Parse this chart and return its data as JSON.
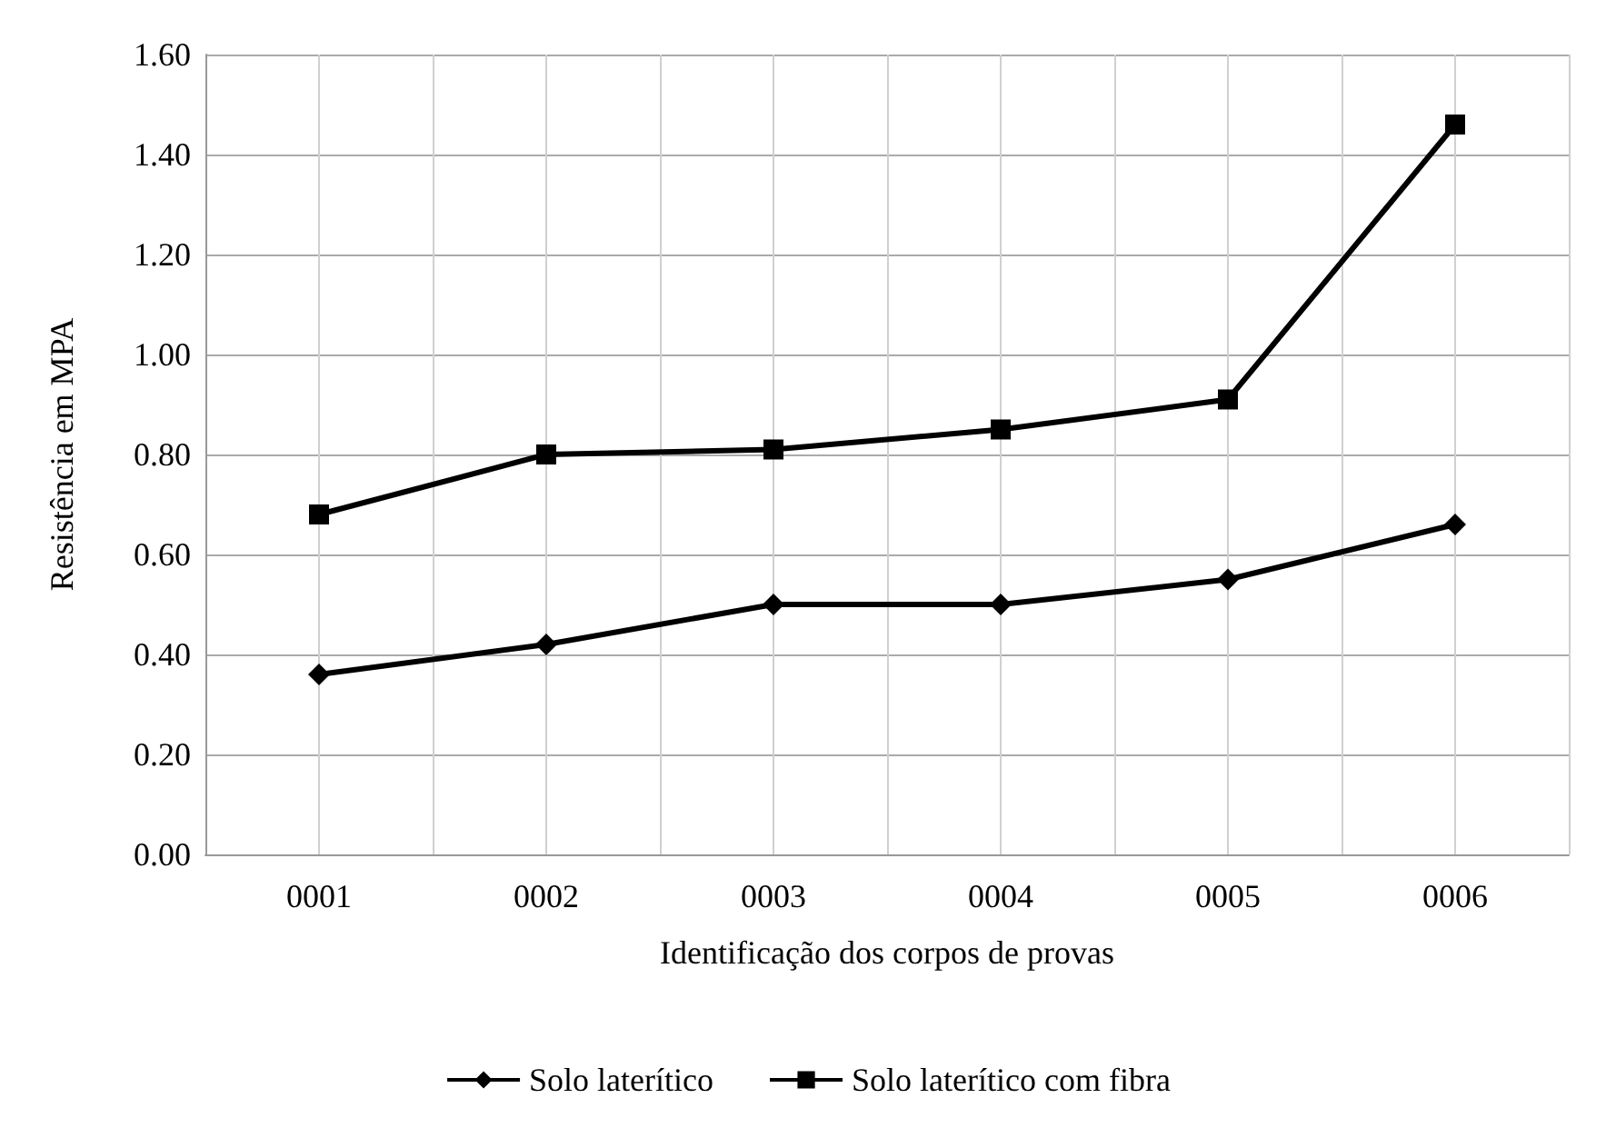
{
  "chart_data": {
    "type": "line",
    "xlabel": "Identificação dos corpos de provas",
    "ylabel": "Resistência em MPA",
    "categories": [
      "0001",
      "0002",
      "0003",
      "0004",
      "0005",
      "0006"
    ],
    "series": [
      {
        "name": "Solo laterítico",
        "color": "#000000",
        "marker": "diamond",
        "values": [
          0.36,
          0.42,
          0.5,
          0.5,
          0.55,
          0.66
        ]
      },
      {
        "name": "Solo laterítico com fibra",
        "color": "#000000",
        "marker": "square",
        "values": [
          0.68,
          0.8,
          0.81,
          0.85,
          0.91,
          1.46
        ]
      }
    ],
    "ylim": [
      0,
      1.6
    ],
    "yticks": [
      {
        "value": 0,
        "label": "0.00"
      },
      {
        "value": 0.2,
        "label": "0.20"
      },
      {
        "value": 0.4,
        "label": "0.40"
      },
      {
        "value": 0.6,
        "label": "0.60"
      },
      {
        "value": 0.8,
        "label": "0.80"
      },
      {
        "value": 1.0,
        "label": "1.00"
      },
      {
        "value": 1.2,
        "label": "1.20"
      },
      {
        "value": 1.4,
        "label": "1.40"
      },
      {
        "value": 1.6,
        "label": "1.60"
      }
    ],
    "grid": true,
    "legend": "bottom",
    "line_style": "solid"
  }
}
